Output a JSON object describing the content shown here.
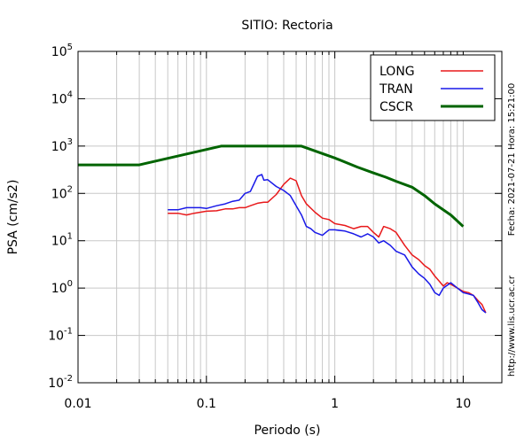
{
  "chart_data": {
    "type": "line",
    "title": "SITIO: Rectoria",
    "xlabel": "Periodo (s)",
    "ylabel": "PSA (cm/s2)",
    "x_scale": "log",
    "y_scale": "log",
    "xlim": [
      0.01,
      20
    ],
    "ylim": [
      0.01,
      100000
    ],
    "grid": true,
    "legend_position": "top-right",
    "x_ticks": [
      {
        "value": 0.01,
        "label": "0.01"
      },
      {
        "value": 0.1,
        "label": "0.1"
      },
      {
        "value": 1,
        "label": "1"
      },
      {
        "value": 10,
        "label": "10"
      }
    ],
    "y_ticks": [
      {
        "value": 0.01,
        "base": "10",
        "exp": "-2"
      },
      {
        "value": 0.1,
        "base": "10",
        "exp": "-1"
      },
      {
        "value": 1,
        "base": "10",
        "exp": "0"
      },
      {
        "value": 10,
        "base": "10",
        "exp": "1"
      },
      {
        "value": 100,
        "base": "10",
        "exp": "2"
      },
      {
        "value": 1000,
        "base": "10",
        "exp": "3"
      },
      {
        "value": 10000,
        "base": "10",
        "exp": "4"
      },
      {
        "value": 100000,
        "base": "10",
        "exp": "5"
      }
    ],
    "side_labels": {
      "date": "Fecha: 2021-07-21 Hora: 15:21:00",
      "url": "http://www.lis.ucr.ac.cr"
    },
    "series": [
      {
        "name": "LONG",
        "color": "#e8191b",
        "x": [
          0.05,
          0.06,
          0.07,
          0.08,
          0.09,
          0.1,
          0.12,
          0.14,
          0.16,
          0.18,
          0.2,
          0.22,
          0.25,
          0.28,
          0.3,
          0.35,
          0.4,
          0.45,
          0.5,
          0.55,
          0.6,
          0.7,
          0.8,
          0.9,
          1.0,
          1.2,
          1.4,
          1.6,
          1.8,
          2.0,
          2.2,
          2.4,
          2.7,
          3.0,
          3.5,
          4.0,
          4.5,
          5.0,
          5.5,
          6.0,
          6.5,
          7.0,
          7.5,
          8.0,
          9.0,
          10,
          11,
          12,
          13,
          14,
          15
        ],
        "y": [
          38,
          38,
          35,
          38,
          40,
          42,
          43,
          47,
          47,
          50,
          50,
          55,
          62,
          65,
          65,
          95,
          155,
          210,
          185,
          90,
          60,
          40,
          30,
          28,
          23,
          21,
          18,
          20,
          20,
          15,
          12,
          20,
          18,
          15,
          8,
          5,
          4,
          3,
          2.5,
          1.8,
          1.4,
          1.1,
          1.3,
          1.2,
          1.0,
          0.85,
          0.8,
          0.7,
          0.55,
          0.45,
          0.3
        ]
      },
      {
        "name": "TRAN",
        "color": "#1919e8",
        "x": [
          0.05,
          0.06,
          0.07,
          0.08,
          0.09,
          0.1,
          0.12,
          0.14,
          0.16,
          0.18,
          0.2,
          0.22,
          0.25,
          0.27,
          0.28,
          0.3,
          0.35,
          0.4,
          0.45,
          0.5,
          0.55,
          0.6,
          0.65,
          0.7,
          0.8,
          0.9,
          1.0,
          1.2,
          1.4,
          1.6,
          1.8,
          2.0,
          2.2,
          2.4,
          2.7,
          3.0,
          3.5,
          4.0,
          4.5,
          5.0,
          5.5,
          6.0,
          6.5,
          7.0,
          8.0,
          9.0,
          10,
          11,
          12,
          13,
          14,
          15
        ],
        "y": [
          45,
          45,
          50,
          50,
          50,
          48,
          55,
          60,
          68,
          72,
          100,
          110,
          230,
          250,
          190,
          195,
          140,
          115,
          90,
          55,
          35,
          20,
          18,
          15,
          13,
          17,
          17,
          16,
          14,
          12,
          14,
          12,
          9,
          10,
          8,
          6,
          5,
          2.8,
          2.0,
          1.6,
          1.2,
          0.8,
          0.7,
          1.0,
          1.3,
          1.0,
          0.8,
          0.75,
          0.7,
          0.5,
          0.35,
          0.3
        ]
      },
      {
        "name": "CSCR",
        "color": "#006400",
        "x": [
          0.01,
          0.03,
          0.13,
          0.55,
          1.0,
          1.5,
          2.0,
          2.5,
          3.0,
          4.0,
          5.0,
          6.0,
          8.0,
          10.0
        ],
        "y": [
          400,
          400,
          1000,
          1000,
          560,
          360,
          270,
          220,
          180,
          135,
          90,
          60,
          35,
          20
        ]
      }
    ]
  }
}
